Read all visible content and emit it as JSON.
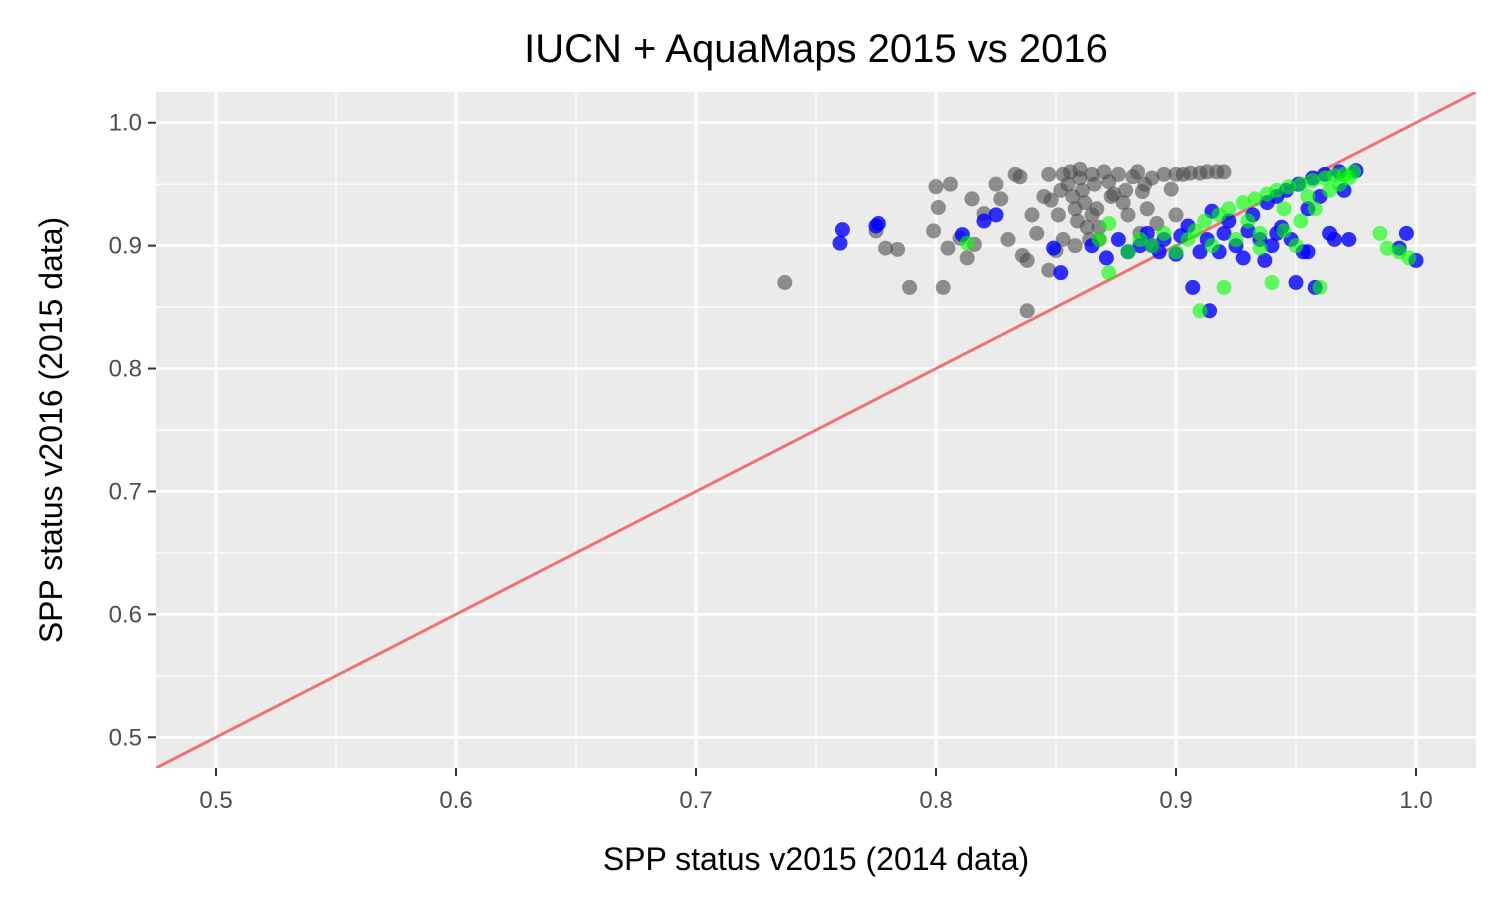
{
  "chart_data": {
    "type": "scatter",
    "title": "IUCN + AquaMaps 2015 vs 2016",
    "xlabel": "SPP status v2015 (2014 data)",
    "ylabel": "SPP status v2016 (2015 data)",
    "xlim": [
      0.475,
      1.025
    ],
    "ylim": [
      0.475,
      1.025
    ],
    "x_ticks": [
      "0.5",
      "0.6",
      "0.7",
      "0.8",
      "0.9",
      "1.0"
    ],
    "y_ticks": [
      "0.5",
      "0.6",
      "0.7",
      "0.8",
      "0.9",
      "1.0"
    ],
    "grid": true,
    "legend": "none",
    "reference_line": {
      "intercept": 0,
      "slope": 1,
      "color": "#f07373"
    },
    "series": [
      {
        "color": "#4d4d4d",
        "opacity": 0.6,
        "points": [
          [
            0.737,
            0.87
          ],
          [
            0.775,
            0.912
          ],
          [
            0.779,
            0.898
          ],
          [
            0.784,
            0.897
          ],
          [
            0.789,
            0.866
          ],
          [
            0.799,
            0.912
          ],
          [
            0.8,
            0.948
          ],
          [
            0.801,
            0.931
          ],
          [
            0.803,
            0.866
          ],
          [
            0.805,
            0.898
          ],
          [
            0.806,
            0.95
          ],
          [
            0.81,
            0.906
          ],
          [
            0.813,
            0.89
          ],
          [
            0.815,
            0.938
          ],
          [
            0.816,
            0.901
          ],
          [
            0.82,
            0.926
          ],
          [
            0.825,
            0.95
          ],
          [
            0.827,
            0.938
          ],
          [
            0.83,
            0.905
          ],
          [
            0.833,
            0.958
          ],
          [
            0.835,
            0.956
          ],
          [
            0.836,
            0.892
          ],
          [
            0.838,
            0.847
          ],
          [
            0.838,
            0.888
          ],
          [
            0.84,
            0.925
          ],
          [
            0.842,
            0.91
          ],
          [
            0.845,
            0.94
          ],
          [
            0.847,
            0.958
          ],
          [
            0.848,
            0.937
          ],
          [
            0.85,
            0.896
          ],
          [
            0.851,
            0.925
          ],
          [
            0.852,
            0.945
          ],
          [
            0.853,
            0.958
          ],
          [
            0.855,
            0.95
          ],
          [
            0.856,
            0.96
          ],
          [
            0.857,
            0.94
          ],
          [
            0.858,
            0.93
          ],
          [
            0.859,
            0.92
          ],
          [
            0.86,
            0.962
          ],
          [
            0.86,
            0.955
          ],
          [
            0.861,
            0.945
          ],
          [
            0.862,
            0.935
          ],
          [
            0.863,
            0.915
          ],
          [
            0.864,
            0.905
          ],
          [
            0.865,
            0.958
          ],
          [
            0.866,
            0.95
          ],
          [
            0.867,
            0.93
          ],
          [
            0.868,
            0.915
          ],
          [
            0.87,
            0.96
          ],
          [
            0.872,
            0.952
          ],
          [
            0.874,
            0.942
          ],
          [
            0.876,
            0.958
          ],
          [
            0.878,
            0.935
          ],
          [
            0.88,
            0.925
          ],
          [
            0.882,
            0.956
          ],
          [
            0.884,
            0.96
          ],
          [
            0.886,
            0.944
          ],
          [
            0.888,
            0.93
          ],
          [
            0.89,
            0.955
          ],
          [
            0.892,
            0.918
          ],
          [
            0.895,
            0.958
          ],
          [
            0.898,
            0.946
          ],
          [
            0.9,
            0.958
          ],
          [
            0.903,
            0.958
          ],
          [
            0.906,
            0.959
          ],
          [
            0.91,
            0.959
          ],
          [
            0.913,
            0.96
          ],
          [
            0.917,
            0.96
          ],
          [
            0.92,
            0.96
          ],
          [
            0.853,
            0.905
          ],
          [
            0.858,
            0.9
          ],
          [
            0.868,
            0.905
          ],
          [
            0.885,
            0.91
          ],
          [
            0.847,
            0.88
          ],
          [
            0.865,
            0.925
          ],
          [
            0.873,
            0.94
          ],
          [
            0.879,
            0.945
          ],
          [
            0.887,
            0.95
          ],
          [
            0.9,
            0.925
          ]
        ]
      },
      {
        "color": "#0000ff",
        "opacity": 0.8,
        "points": [
          [
            0.76,
            0.902
          ],
          [
            0.761,
            0.913
          ],
          [
            0.775,
            0.916
          ],
          [
            0.776,
            0.918
          ],
          [
            0.811,
            0.909
          ],
          [
            0.82,
            0.92
          ],
          [
            0.825,
            0.925
          ],
          [
            0.849,
            0.898
          ],
          [
            0.852,
            0.878
          ],
          [
            0.865,
            0.9
          ],
          [
            0.871,
            0.89
          ],
          [
            0.876,
            0.905
          ],
          [
            0.88,
            0.895
          ],
          [
            0.885,
            0.9
          ],
          [
            0.888,
            0.91
          ],
          [
            0.89,
            0.9
          ],
          [
            0.893,
            0.895
          ],
          [
            0.895,
            0.905
          ],
          [
            0.9,
            0.893
          ],
          [
            0.902,
            0.908
          ],
          [
            0.905,
            0.916
          ],
          [
            0.907,
            0.866
          ],
          [
            0.91,
            0.895
          ],
          [
            0.913,
            0.905
          ],
          [
            0.914,
            0.847
          ],
          [
            0.915,
            0.928
          ],
          [
            0.918,
            0.895
          ],
          [
            0.92,
            0.91
          ],
          [
            0.922,
            0.92
          ],
          [
            0.925,
            0.9
          ],
          [
            0.928,
            0.89
          ],
          [
            0.93,
            0.912
          ],
          [
            0.932,
            0.925
          ],
          [
            0.935,
            0.905
          ],
          [
            0.938,
            0.935
          ],
          [
            0.94,
            0.9
          ],
          [
            0.942,
            0.94
          ],
          [
            0.944,
            0.915
          ],
          [
            0.946,
            0.945
          ],
          [
            0.948,
            0.905
          ],
          [
            0.95,
            0.87
          ],
          [
            0.951,
            0.95
          ],
          [
            0.953,
            0.895
          ],
          [
            0.955,
            0.93
          ],
          [
            0.957,
            0.955
          ],
          [
            0.958,
            0.866
          ],
          [
            0.96,
            0.94
          ],
          [
            0.962,
            0.958
          ],
          [
            0.964,
            0.91
          ],
          [
            0.966,
            0.905
          ],
          [
            0.968,
            0.96
          ],
          [
            0.97,
            0.945
          ],
          [
            0.972,
            0.905
          ],
          [
            0.975,
            0.961
          ],
          [
            0.993,
            0.898
          ],
          [
            0.996,
            0.91
          ],
          [
            1.0,
            0.888
          ],
          [
            0.955,
            0.895
          ],
          [
            0.942,
            0.91
          ],
          [
            0.937,
            0.888
          ]
        ]
      },
      {
        "color": "#00ff00",
        "opacity": 0.6,
        "points": [
          [
            0.813,
            0.902
          ],
          [
            0.868,
            0.905
          ],
          [
            0.872,
            0.918
          ],
          [
            0.872,
            0.878
          ],
          [
            0.88,
            0.895
          ],
          [
            0.885,
            0.905
          ],
          [
            0.89,
            0.9
          ],
          [
            0.895,
            0.91
          ],
          [
            0.9,
            0.895
          ],
          [
            0.905,
            0.905
          ],
          [
            0.908,
            0.912
          ],
          [
            0.91,
            0.847
          ],
          [
            0.912,
            0.92
          ],
          [
            0.915,
            0.9
          ],
          [
            0.918,
            0.925
          ],
          [
            0.92,
            0.866
          ],
          [
            0.922,
            0.93
          ],
          [
            0.925,
            0.905
          ],
          [
            0.928,
            0.935
          ],
          [
            0.93,
            0.92
          ],
          [
            0.933,
            0.938
          ],
          [
            0.935,
            0.91
          ],
          [
            0.938,
            0.942
          ],
          [
            0.94,
            0.87
          ],
          [
            0.942,
            0.945
          ],
          [
            0.945,
            0.93
          ],
          [
            0.947,
            0.948
          ],
          [
            0.95,
            0.9
          ],
          [
            0.952,
            0.95
          ],
          [
            0.955,
            0.94
          ],
          [
            0.957,
            0.953
          ],
          [
            0.96,
            0.866
          ],
          [
            0.962,
            0.955
          ],
          [
            0.964,
            0.945
          ],
          [
            0.966,
            0.957
          ],
          [
            0.968,
            0.95
          ],
          [
            0.97,
            0.958
          ],
          [
            0.972,
            0.955
          ],
          [
            0.974,
            0.96
          ],
          [
            0.985,
            0.91
          ],
          [
            0.988,
            0.898
          ],
          [
            0.993,
            0.895
          ],
          [
            0.997,
            0.89
          ],
          [
            0.952,
            0.92
          ],
          [
            0.945,
            0.912
          ],
          [
            0.935,
            0.898
          ],
          [
            0.958,
            0.93
          ]
        ]
      }
    ]
  }
}
